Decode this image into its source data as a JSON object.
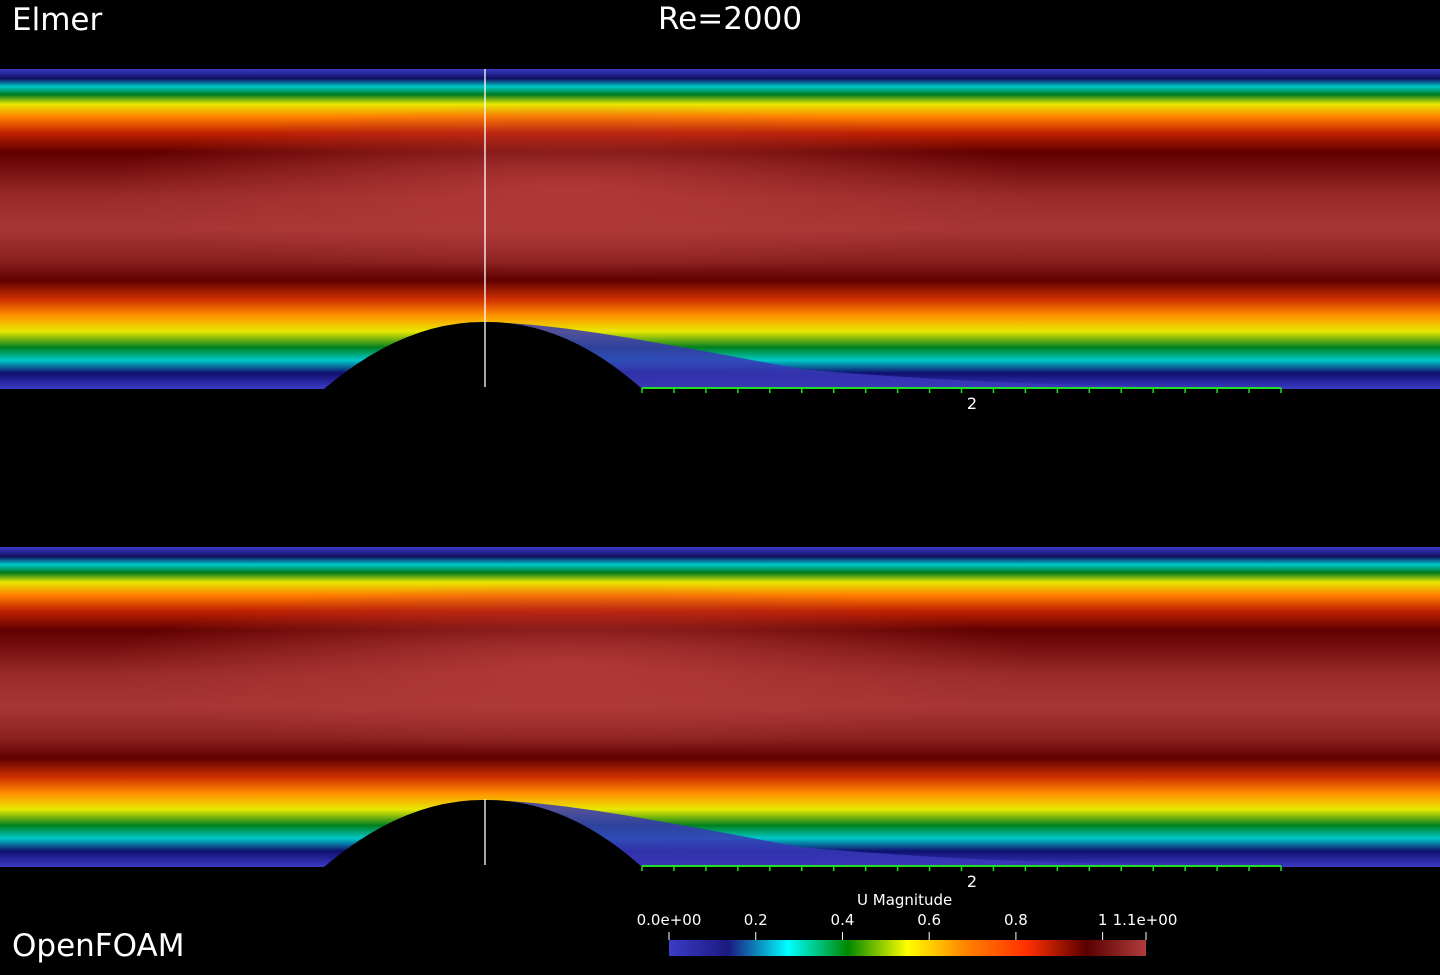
{
  "labels": {
    "top_left": "Elmer",
    "top_center": "Re=2000",
    "bottom_left": "OpenFOAM"
  },
  "panels": [
    {
      "solver": "Elmer",
      "axis_label": "2"
    },
    {
      "solver": "OpenFOAM",
      "axis_label": "2"
    }
  ],
  "colorbar": {
    "title": "U Magnitude",
    "min": 0.0,
    "max": 1.1,
    "ticks": [
      {
        "value": 0.0,
        "label": "0.0e+00"
      },
      {
        "value": 0.2,
        "label": "0.2"
      },
      {
        "value": 0.4,
        "label": "0.4"
      },
      {
        "value": 0.6,
        "label": "0.6"
      },
      {
        "value": 0.8,
        "label": "0.8"
      },
      {
        "value": 1.0,
        "label": "1"
      },
      {
        "value": 1.1,
        "label": "1.1e+00"
      }
    ],
    "colors": [
      "#3b3bc6",
      "#1a1a80",
      "#00ffff",
      "#008800",
      "#ffff00",
      "#ff8000",
      "#ff3000",
      "#5a0000",
      "#b03c3c"
    ]
  },
  "colors": {
    "background": "#000000",
    "axis": "#22dd22",
    "probe_line": "#ffffff"
  }
}
